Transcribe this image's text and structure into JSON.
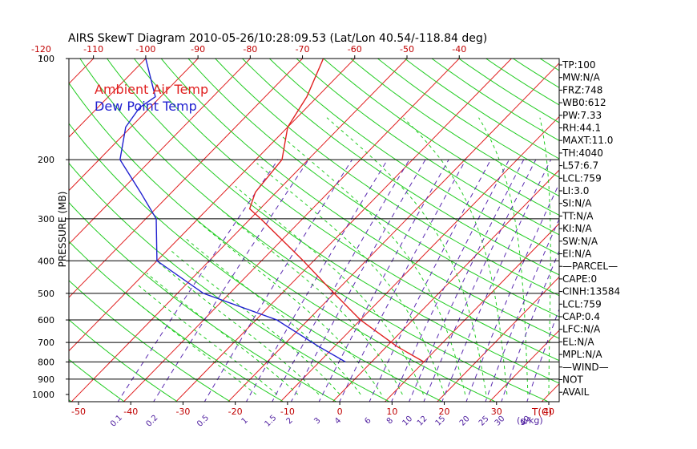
{
  "chart_data": {
    "type": "line",
    "title": "AIRS SkewT Diagram 2010-05-26/10:28:09.53 (Lat/Lon 40.54/-118.84 deg)",
    "ylabel": "PRESSURE (MB)",
    "xlabel_bottom_unit": "T(C)",
    "mixing_ratio_unit": "(g/kg)",
    "y_scale": "log",
    "ylim": [
      1050,
      100
    ],
    "xlim_bottom": [
      -50,
      40
    ],
    "pressure_ticks": [
      100,
      200,
      300,
      400,
      500,
      600,
      700,
      800,
      900,
      1000
    ],
    "pressure_lines": [
      200,
      300,
      400,
      500,
      600,
      700,
      800,
      900
    ],
    "bottom_temp_ticks": [
      -50,
      -40,
      -30,
      -20,
      -10,
      0,
      10,
      20,
      30,
      40
    ],
    "top_temp_ticks": [
      -120,
      -110,
      -100,
      -90,
      -80,
      -70,
      -60,
      -50,
      -40
    ],
    "mixing_ratio_labels": [
      "0.1",
      "0.2",
      "0.5",
      "1",
      "1.5",
      "2",
      "3",
      "4",
      "6",
      "8",
      "10",
      "12",
      "15",
      "20",
      "25",
      "30",
      "40"
    ],
    "legend": [
      {
        "label": "Ambient Air Temp",
        "color": "#e02020"
      },
      {
        "label": "Dew Point Temp",
        "color": "#2020d0"
      }
    ],
    "series": [
      {
        "name": "Ambient Air Temp",
        "color": "#e02020",
        "p": [
          800,
          720,
          600,
          500,
          400,
          300,
          280,
          250,
          200,
          160,
          130,
          100
        ],
        "t": [
          10,
          2,
          -10,
          -20,
          -32,
          -48,
          -52,
          -54,
          -55,
          -60,
          -62,
          -66
        ]
      },
      {
        "name": "Dew Point Temp",
        "color": "#2020d0",
        "p": [
          800,
          720,
          600,
          500,
          400,
          300,
          250,
          200,
          160,
          140,
          130,
          100
        ],
        "t": [
          -5,
          -13,
          -26,
          -45,
          -60,
          -68,
          -76,
          -86,
          -91,
          -92,
          -91,
          -100
        ]
      }
    ],
    "indices": [
      "TP:100",
      "MW:N/A",
      "FRZ:748",
      "WB0:612",
      "PW:7.33",
      "RH:44.1",
      "MAXT:11.0",
      "TH:4040",
      "L57:6.7",
      "LCL:759",
      "LI:3.0",
      "SI:N/A",
      "TT:N/A",
      "KI:N/A",
      "SW:N/A",
      "EI:N/A",
      "—PARCEL—",
      "CAPE:0",
      "CINH:13584",
      "LCL:759",
      "CAP:0.4",
      "LFC:N/A",
      "EL:N/A",
      "MPL:N/A",
      "—WIND—",
      "NOT",
      "AVAIL"
    ],
    "colors": {
      "isotherm": "#e02020",
      "dry_adiabat": "#22cc22",
      "moist_adiabat": "#22cc22",
      "mixing_ratio": "#5a2ab0",
      "frame": "#000000",
      "temp_tick_labels": "#c00000",
      "mixing_ratio_labels": "#5020a0"
    }
  }
}
